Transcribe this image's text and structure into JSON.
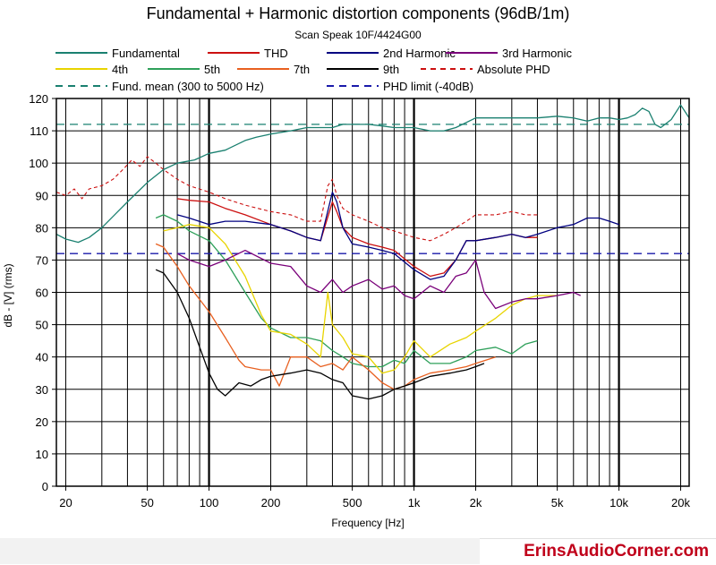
{
  "chart_data": {
    "type": "line",
    "title": "Fundamental + Harmonic distortion components (96dB/1m)",
    "subtitle": "Scan Speak 10F/4424G00",
    "xlabel": "Frequency [Hz]",
    "ylabel": "dB - [V]  (rms)",
    "x_scale": "log",
    "xlim": [
      18,
      22000
    ],
    "ylim": [
      0,
      120
    ],
    "x_ticks": [
      20,
      50,
      100,
      200,
      500,
      1000,
      2000,
      5000,
      10000,
      20000
    ],
    "x_tick_labels": [
      "20",
      "50",
      "100",
      "200",
      "500",
      "1k",
      "2k",
      "5k",
      "10k",
      "20k"
    ],
    "y_ticks": [
      0,
      10,
      20,
      30,
      40,
      50,
      60,
      70,
      80,
      90,
      100,
      110,
      120
    ],
    "y_tick_labels": [
      "0",
      "10",
      "20",
      "30",
      "40",
      "50",
      "60",
      "70",
      "80",
      "90",
      "100",
      "110",
      "120"
    ],
    "grid": true,
    "legend_placement": "top",
    "series": [
      {
        "name": "Fundamental",
        "color": "#1a8070",
        "style": "solid",
        "points": [
          [
            18,
            78
          ],
          [
            20,
            76.5
          ],
          [
            23,
            75.5
          ],
          [
            26,
            77
          ],
          [
            30,
            80
          ],
          [
            40,
            88
          ],
          [
            50,
            94
          ],
          [
            60,
            98
          ],
          [
            70,
            100
          ],
          [
            85,
            101
          ],
          [
            100,
            103
          ],
          [
            120,
            104
          ],
          [
            150,
            107
          ],
          [
            170,
            108
          ],
          [
            200,
            109
          ],
          [
            250,
            110
          ],
          [
            300,
            111
          ],
          [
            400,
            111
          ],
          [
            450,
            112
          ],
          [
            500,
            112
          ],
          [
            600,
            112
          ],
          [
            700,
            111.5
          ],
          [
            800,
            111
          ],
          [
            1000,
            111
          ],
          [
            1200,
            110
          ],
          [
            1400,
            110
          ],
          [
            1600,
            111
          ],
          [
            2000,
            114
          ],
          [
            2500,
            114
          ],
          [
            3000,
            114
          ],
          [
            4000,
            114
          ],
          [
            5000,
            114.5
          ],
          [
            6000,
            114
          ],
          [
            7000,
            113
          ],
          [
            8000,
            114
          ],
          [
            9000,
            114
          ],
          [
            10000,
            113.5
          ],
          [
            11000,
            114
          ],
          [
            12000,
            115
          ],
          [
            13000,
            117
          ],
          [
            14000,
            116
          ],
          [
            15000,
            112
          ],
          [
            16000,
            111
          ],
          [
            18000,
            113.5
          ],
          [
            20000,
            118
          ],
          [
            22000,
            114
          ]
        ]
      },
      {
        "name": "THD",
        "color": "#cc1010",
        "style": "solid",
        "points": [
          [
            70,
            89
          ],
          [
            80,
            88.5
          ],
          [
            100,
            88
          ],
          [
            120,
            86
          ],
          [
            150,
            84
          ],
          [
            200,
            81
          ],
          [
            250,
            79
          ],
          [
            300,
            77
          ],
          [
            350,
            76
          ],
          [
            400,
            88
          ],
          [
            420,
            85
          ],
          [
            450,
            80
          ],
          [
            500,
            77
          ],
          [
            600,
            75
          ],
          [
            700,
            74
          ],
          [
            800,
            73
          ],
          [
            1000,
            68
          ],
          [
            1200,
            65
          ],
          [
            1400,
            66
          ],
          [
            1600,
            70
          ],
          [
            1800,
            76
          ],
          [
            2000,
            76
          ],
          [
            2500,
            77
          ],
          [
            3000,
            78
          ],
          [
            3500,
            77
          ],
          [
            4000,
            77
          ]
        ]
      },
      {
        "name": "2nd Harmonic",
        "color": "#000080",
        "style": "solid",
        "points": [
          [
            70,
            84
          ],
          [
            80,
            83
          ],
          [
            100,
            81
          ],
          [
            120,
            82
          ],
          [
            150,
            82
          ],
          [
            200,
            81
          ],
          [
            250,
            79
          ],
          [
            300,
            77
          ],
          [
            350,
            76
          ],
          [
            400,
            91
          ],
          [
            420,
            88
          ],
          [
            450,
            80
          ],
          [
            500,
            75
          ],
          [
            600,
            74
          ],
          [
            700,
            73
          ],
          [
            800,
            72
          ],
          [
            1000,
            67
          ],
          [
            1200,
            64
          ],
          [
            1400,
            65
          ],
          [
            1600,
            70
          ],
          [
            1800,
            76
          ],
          [
            2000,
            76
          ],
          [
            2500,
            77
          ],
          [
            3000,
            78
          ],
          [
            3500,
            77
          ],
          [
            4000,
            78
          ],
          [
            5000,
            80
          ],
          [
            6000,
            81
          ],
          [
            7000,
            83
          ],
          [
            8000,
            83
          ],
          [
            9000,
            82
          ],
          [
            10000,
            81
          ]
        ]
      },
      {
        "name": "3rd Harmonic",
        "color": "#7a007a",
        "style": "solid",
        "points": [
          [
            70,
            72
          ],
          [
            80,
            70
          ],
          [
            100,
            68
          ],
          [
            120,
            70
          ],
          [
            150,
            73
          ],
          [
            200,
            69
          ],
          [
            250,
            68
          ],
          [
            300,
            62
          ],
          [
            350,
            60
          ],
          [
            400,
            64
          ],
          [
            450,
            60
          ],
          [
            500,
            62
          ],
          [
            600,
            64
          ],
          [
            700,
            61
          ],
          [
            800,
            62
          ],
          [
            900,
            59
          ],
          [
            1000,
            58
          ],
          [
            1200,
            62
          ],
          [
            1400,
            60
          ],
          [
            1600,
            65
          ],
          [
            1800,
            66
          ],
          [
            2000,
            70
          ],
          [
            2200,
            60
          ],
          [
            2500,
            55
          ],
          [
            3000,
            57
          ],
          [
            3500,
            58
          ],
          [
            4000,
            58
          ],
          [
            5000,
            59
          ],
          [
            6000,
            60
          ],
          [
            6500,
            59
          ]
        ]
      },
      {
        "name": "4th",
        "color": "#e8d400",
        "style": "solid",
        "points": [
          [
            60,
            79
          ],
          [
            70,
            80
          ],
          [
            80,
            81
          ],
          [
            100,
            80
          ],
          [
            120,
            75
          ],
          [
            150,
            65
          ],
          [
            180,
            53
          ],
          [
            200,
            48
          ],
          [
            250,
            47
          ],
          [
            300,
            44
          ],
          [
            350,
            40
          ],
          [
            380,
            60
          ],
          [
            400,
            50
          ],
          [
            450,
            46
          ],
          [
            500,
            41
          ],
          [
            600,
            40
          ],
          [
            700,
            35
          ],
          [
            800,
            36
          ],
          [
            900,
            40
          ],
          [
            1000,
            45
          ],
          [
            1200,
            40
          ],
          [
            1500,
            44
          ],
          [
            1800,
            46
          ],
          [
            2000,
            48
          ],
          [
            2500,
            52
          ],
          [
            3000,
            56
          ],
          [
            3500,
            58
          ],
          [
            4000,
            59
          ],
          [
            5000,
            59
          ]
        ]
      },
      {
        "name": "5th",
        "color": "#2ea05a",
        "style": "solid",
        "points": [
          [
            55,
            83
          ],
          [
            60,
            84
          ],
          [
            70,
            82
          ],
          [
            80,
            79
          ],
          [
            100,
            76
          ],
          [
            120,
            70
          ],
          [
            150,
            60
          ],
          [
            180,
            52
          ],
          [
            200,
            49
          ],
          [
            250,
            46
          ],
          [
            300,
            46
          ],
          [
            350,
            45
          ],
          [
            400,
            42
          ],
          [
            450,
            40
          ],
          [
            500,
            38
          ],
          [
            600,
            37
          ],
          [
            700,
            37
          ],
          [
            800,
            39
          ],
          [
            900,
            38
          ],
          [
            1000,
            42
          ],
          [
            1200,
            38
          ],
          [
            1500,
            38
          ],
          [
            1800,
            40
          ],
          [
            2000,
            42
          ],
          [
            2500,
            43
          ],
          [
            3000,
            41
          ],
          [
            3500,
            44
          ],
          [
            4000,
            45
          ]
        ]
      },
      {
        "name": "7th",
        "color": "#e86020",
        "style": "solid",
        "points": [
          [
            55,
            75
          ],
          [
            60,
            74
          ],
          [
            70,
            68
          ],
          [
            80,
            62
          ],
          [
            100,
            54
          ],
          [
            120,
            46
          ],
          [
            140,
            39
          ],
          [
            150,
            37
          ],
          [
            180,
            36
          ],
          [
            200,
            36
          ],
          [
            220,
            31
          ],
          [
            250,
            40
          ],
          [
            300,
            40
          ],
          [
            350,
            37
          ],
          [
            400,
            38
          ],
          [
            450,
            36
          ],
          [
            500,
            40
          ],
          [
            600,
            36
          ],
          [
            700,
            32
          ],
          [
            800,
            30
          ],
          [
            900,
            31
          ],
          [
            1000,
            33
          ],
          [
            1200,
            35
          ],
          [
            1500,
            36
          ],
          [
            1800,
            37
          ],
          [
            2000,
            38
          ],
          [
            2500,
            40
          ]
        ]
      },
      {
        "name": "9th",
        "color": "#000000",
        "style": "solid",
        "points": [
          [
            55,
            67
          ],
          [
            60,
            66
          ],
          [
            70,
            60
          ],
          [
            80,
            52
          ],
          [
            90,
            43
          ],
          [
            100,
            35
          ],
          [
            110,
            30
          ],
          [
            120,
            28
          ],
          [
            140,
            32
          ],
          [
            160,
            31
          ],
          [
            180,
            33
          ],
          [
            200,
            34
          ],
          [
            250,
            35
          ],
          [
            300,
            36
          ],
          [
            350,
            35
          ],
          [
            400,
            33
          ],
          [
            450,
            32
          ],
          [
            500,
            28
          ],
          [
            600,
            27
          ],
          [
            700,
            28
          ],
          [
            800,
            30
          ],
          [
            900,
            31
          ],
          [
            1000,
            32
          ],
          [
            1200,
            34
          ],
          [
            1500,
            35
          ],
          [
            1800,
            36
          ],
          [
            2000,
            37
          ],
          [
            2200,
            38
          ]
        ]
      },
      {
        "name": "Absolute PHD",
        "color": "#cc1010",
        "style": "dashed",
        "points": [
          [
            18,
            91
          ],
          [
            20,
            90
          ],
          [
            22,
            92
          ],
          [
            24,
            89
          ],
          [
            26,
            92
          ],
          [
            30,
            93
          ],
          [
            34,
            95
          ],
          [
            38,
            98
          ],
          [
            42,
            101
          ],
          [
            46,
            99
          ],
          [
            50,
            102
          ],
          [
            55,
            100
          ],
          [
            60,
            98
          ],
          [
            70,
            95
          ],
          [
            80,
            93
          ],
          [
            100,
            91
          ],
          [
            120,
            89
          ],
          [
            150,
            87
          ],
          [
            200,
            85
          ],
          [
            250,
            84
          ],
          [
            300,
            82
          ],
          [
            350,
            82
          ],
          [
            380,
            93
          ],
          [
            400,
            95
          ],
          [
            420,
            90
          ],
          [
            450,
            86
          ],
          [
            500,
            84
          ],
          [
            600,
            82
          ],
          [
            700,
            80
          ],
          [
            800,
            79
          ],
          [
            1000,
            77
          ],
          [
            1200,
            76
          ],
          [
            1400,
            78
          ],
          [
            1600,
            80
          ],
          [
            1800,
            82
          ],
          [
            2000,
            84
          ],
          [
            2500,
            84
          ],
          [
            3000,
            85
          ],
          [
            3500,
            84
          ],
          [
            4000,
            84
          ]
        ]
      },
      {
        "name": "Fund. mean (300 to 5000 Hz)",
        "color": "#1a8070",
        "style": "dashed",
        "points": [
          [
            18,
            112
          ],
          [
            22000,
            112
          ]
        ]
      },
      {
        "name": "PHD limit (-40dB)",
        "color": "#1a1aaa",
        "style": "dashed",
        "points": [
          [
            18,
            72
          ],
          [
            22000,
            72
          ]
        ]
      }
    ]
  },
  "watermark": {
    "text": "ErinsAudioCorner.com"
  }
}
